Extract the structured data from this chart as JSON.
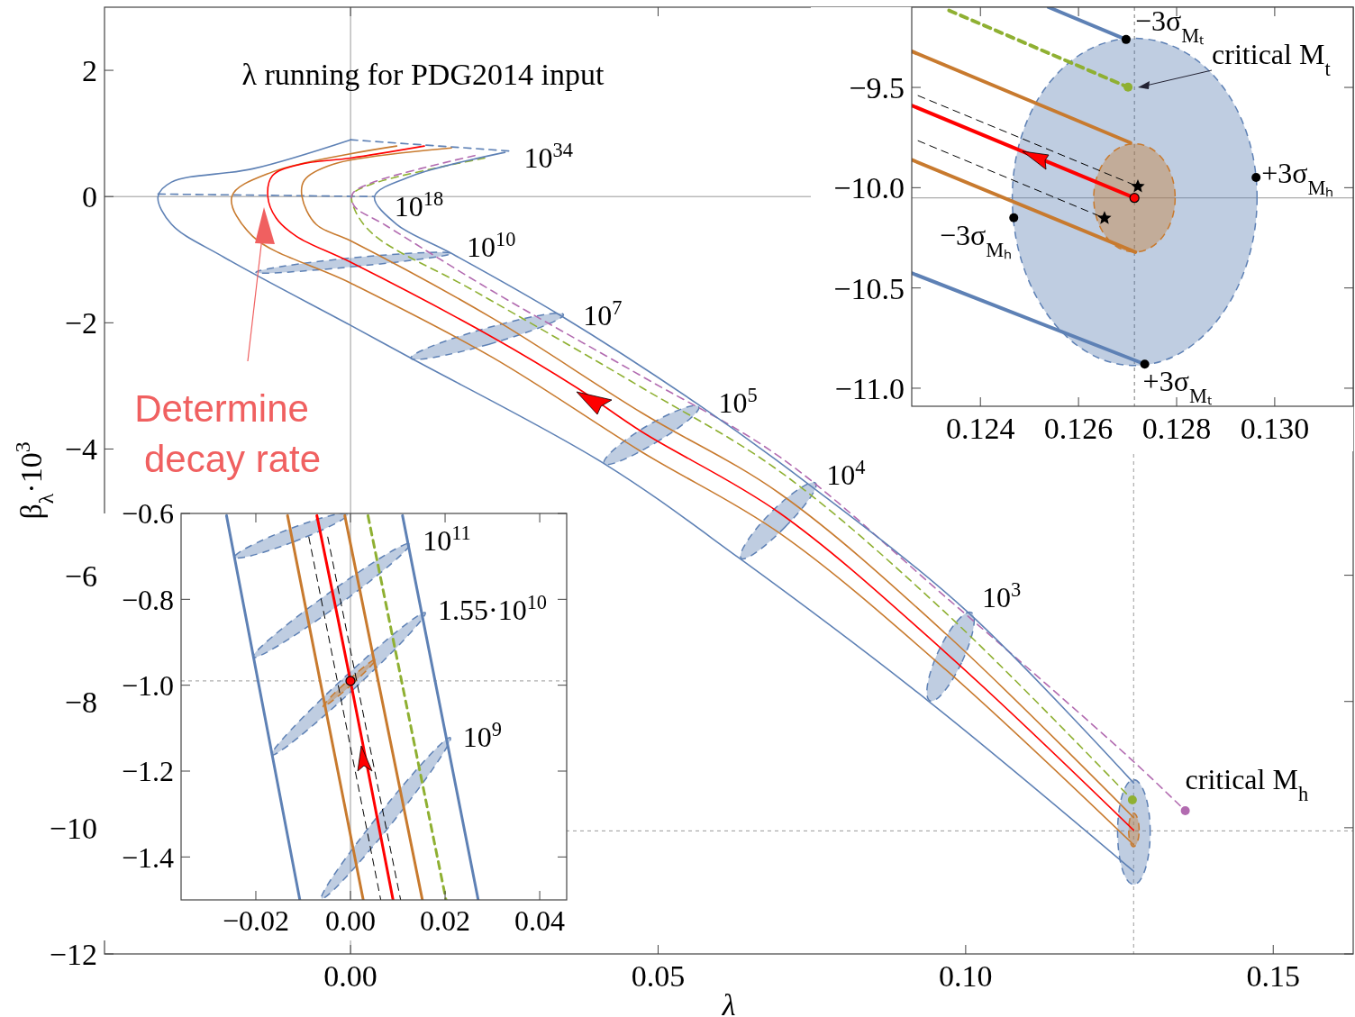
{
  "chart_data": [
    {
      "type": "line",
      "title": "λ running for PDG2014 input",
      "xlabel": "λ",
      "ylabel": "β$_{λ}$·10$^{3}$",
      "xlim": [
        -0.04,
        0.163
      ],
      "ylim": [
        -12,
        3
      ],
      "xticks": [
        {
          "value": 0,
          "label": "0.00"
        },
        {
          "value": 0.05,
          "label": "0.05"
        },
        {
          "value": 0.1,
          "label": "0.10"
        },
        {
          "value": 0.15,
          "label": "0.15"
        }
      ],
      "yticks": [
        {
          "value": -12,
          "label": "−12"
        },
        {
          "value": -10,
          "label": "−10"
        },
        {
          "value": -8,
          "label": "−8"
        },
        {
          "value": -6,
          "label": "−6"
        },
        {
          "value": -4,
          "label": "−4"
        },
        {
          "value": -2,
          "label": "−2"
        },
        {
          "value": 0,
          "label": "0"
        },
        {
          "value": 2,
          "label": "2"
        }
      ],
      "ref_lines": [
        {
          "axis": "x",
          "value": 0,
          "color": "#999999",
          "line_style": "solid"
        },
        {
          "axis": "y",
          "value": 0,
          "color": "#999999",
          "line_style": "solid"
        },
        {
          "axis": "x",
          "value": 0.1273,
          "color": "#999999",
          "line_style": "dashed"
        },
        {
          "axis": "y",
          "value": -10.05,
          "color": "#999999",
          "line_style": "dashed"
        }
      ],
      "series": [
        {
          "type": "area",
          "color": "#5e81b5",
          "line_style": "dashed",
          "x": [
            -0.0154,
            0.0005,
            0.0164,
            0.0004
          ],
          "values": [
            -1.2,
            -1.11,
            -0.9,
            -0.97
          ]
        },
        {
          "type": "area",
          "color": "#5e81b5",
          "line_style": "dashed",
          "x": [
            0.0098,
            0.0225,
            0.0346,
            0.0219
          ],
          "values": [
            -2.56,
            -2.34,
            -1.87,
            -2.09
          ]
        },
        {
          "type": "area",
          "color": "#5e81b5",
          "line_style": "dashed",
          "x": [
            0.0412,
            0.0496,
            0.0566,
            0.0481
          ],
          "values": [
            -4.23,
            -3.9,
            -3.33,
            -3.64
          ]
        },
        {
          "type": "area",
          "color": "#5e81b5",
          "line_style": "dashed",
          "x": [
            0.0635,
            0.0706,
            0.0756,
            0.0683
          ],
          "values": [
            -5.73,
            -5.24,
            -4.54,
            -5.01
          ]
        },
        {
          "type": "area",
          "color": "#5e81b5",
          "line_style": "dashed",
          "x": [
            0.0942,
            0.0994,
            0.1009,
            0.0956
          ],
          "values": [
            -7.99,
            -7.37,
            -6.59,
            -7.2
          ]
        },
        {
          "type": "area",
          "color": "#5e81b5",
          "line_style": "dashed",
          "x": [
            0.1273,
            0.13,
            0.1273,
            0.1247
          ],
          "values": [
            -10.9,
            -10.07,
            -9.24,
            -10.07
          ]
        },
        {
          "type": "area",
          "color": "#c87a2e",
          "line_style": "dashed",
          "x": [
            0.1273,
            0.1282,
            0.1273,
            0.1265
          ],
          "values": [
            -10.3,
            -10.04,
            -9.77,
            -10.04
          ]
        },
        {
          "type": "line",
          "color": "#5e81b5",
          "line_style": "dashed",
          "x": [
            0,
            0.026
          ],
          "values": [
            0.9,
            0.72
          ]
        },
        {
          "type": "line",
          "color": "#5e81b5",
          "line_style": "dashed",
          "x": [
            -0.0313,
            0.0039
          ],
          "values": [
            0.04,
            0
          ]
        },
        {
          "type": "line",
          "color": "#5e81b5",
          "line_style": "solid",
          "x": [
            0,
            -0.0159,
            -0.0291,
            -0.0313,
            -0.0291,
            -0.0206,
            0,
            0.0098,
            0.0412,
            0.0632,
            0.0939,
            0.1273
          ],
          "values": [
            0.9,
            0.44,
            0.23,
            0,
            -0.44,
            -0.96,
            -2.04,
            -2.56,
            -4.23,
            -5.73,
            -7.99,
            -10.69
          ]
        },
        {
          "type": "line",
          "color": "#c87a2e",
          "line_style": "solid",
          "x": [
            0.0075,
            -0.0127,
            -0.0193,
            -0.0159,
            0,
            0.0231,
            0.0474,
            0.0697,
            0.0968,
            0.1273
          ],
          "values": [
            0.8,
            0.39,
            0,
            -0.63,
            -1.37,
            -2.55,
            -4.05,
            -5.33,
            -7.5,
            -10.27
          ]
        },
        {
          "type": "line",
          "color": "#ff0000",
          "line_style": "solid",
          "x": [
            0.012,
            0,
            -0.0082,
            -0.0127,
            -0.01345,
            -0.0121,
            -0.0088,
            0,
            0.0231,
            0.0368,
            0.0474,
            0.0697,
            0.0968,
            0.1273
          ],
          "values": [
            0.8,
            0.61,
            0.51,
            0.33,
            0,
            -0.34,
            -0.63,
            -1.04,
            -2.23,
            -3.03,
            -3.73,
            -5.01,
            -7.23,
            -10.04
          ]
        },
        {
          "type": "line",
          "color": "#c87a2e",
          "line_style": "solid",
          "x": [
            0.0164,
            -0.0029,
            -0.0075,
            -0.0079,
            -0.0056,
            0,
            0.0231,
            0.0474,
            0.0697,
            0.0968,
            0.1273
          ],
          "values": [
            0.77,
            0.51,
            0.26,
            0,
            -0.44,
            -0.7,
            -1.93,
            -3.43,
            -4.7,
            -6.93,
            -9.84
          ]
        },
        {
          "type": "line",
          "color": "#8fb032",
          "line_style": "dashed",
          "x": [
            0.0218,
            0.0035,
            0.0003,
            0.0006,
            0.0037,
            0.0202,
            0.0474,
            0.0697,
            0.0968,
            0.1271
          ],
          "values": [
            0.61,
            0.2,
            0.03,
            -0.19,
            -0.6,
            -1.5,
            -3.03,
            -4.35,
            -6.6,
            -9.56
          ]
        },
        {
          "type": "line",
          "color": "#b26bb0",
          "line_style": "dashed",
          "x": [
            0.0202,
            0.0035,
            0.0003,
            0.0006,
            0.0056,
            0.0231,
            0.0474,
            0.0697,
            0.0968,
            0.1266,
            0.1357
          ],
          "values": [
            0.65,
            0.22,
            0.04,
            -0.15,
            -0.45,
            -1.5,
            -2.85,
            -4.12,
            -6.35,
            -8.89,
            -9.73
          ]
        },
        {
          "type": "line",
          "color": "#5e81b5",
          "line_style": "solid",
          "x": [
            0.0251,
            0.0101,
            0.0039,
            0.0075,
            0.0164,
            0.0339,
            0.0566,
            0.0749,
            0.1004,
            0.1273
          ],
          "values": [
            0.7,
            0.33,
            0,
            -0.44,
            -0.9,
            -1.87,
            -3.3,
            -4.59,
            -6.59,
            -9.29
          ]
        },
        {
          "type": "scatter",
          "color": "#8fb032",
          "marker": "circle",
          "x": [
            0.1271
          ],
          "values": [
            -9.56
          ]
        },
        {
          "type": "scatter",
          "color": "#b26bb0",
          "marker": "circle",
          "x": [
            0.1357
          ],
          "values": [
            -9.73
          ]
        }
      ],
      "annotations": [
        "Determine decay rate",
        {
          "text": "10$^{34}$",
          "x": 0.026,
          "y": 0.72
        },
        {
          "text": "10$^{18}$",
          "x": 0.0039,
          "y": 0
        },
        {
          "text": "10$^{10}$",
          "x": 0.0164,
          "y": -0.9
        },
        {
          "text": "10$^{7}$",
          "x": 0.0346,
          "y": -1.87
        },
        {
          "text": "10$^{5}$",
          "x": 0.0566,
          "y": -3.33
        },
        {
          "text": "10$^{4}$",
          "x": 0.0756,
          "y": -4.54
        },
        {
          "text": "10$^{3}$",
          "x": 0.1009,
          "y": -6.59
        },
        {
          "text": "critical M$_{h}$",
          "x": 0.1357,
          "y": -9.73
        }
      ]
    },
    {
      "type": "line",
      "xlim": [
        -0.0358,
        0.0457
      ],
      "ylim": [
        -1.5,
        -0.6
      ],
      "xticks": [
        {
          "value": -0.02,
          "label": "−0.02"
        },
        {
          "value": 0,
          "label": "0.00"
        },
        {
          "value": 0.02,
          "label": "0.02"
        },
        {
          "value": 0.04,
          "label": "0.04"
        }
      ],
      "yticks": [
        {
          "value": -1.4,
          "label": "−1.4"
        },
        {
          "value": -1.2,
          "label": "−1.2"
        },
        {
          "value": -1.0,
          "label": "−1.0"
        },
        {
          "value": -0.8,
          "label": "−0.8"
        },
        {
          "value": -0.6,
          "label": "−0.6"
        }
      ],
      "ref_lines": [
        {
          "axis": "x",
          "value": 0,
          "color": "#999999",
          "line_style": "solid"
        },
        {
          "axis": "y",
          "value": -0.99,
          "color": "#999999",
          "line_style": "dashed"
        }
      ],
      "series": [
        {
          "type": "area",
          "color": "#5e81b5",
          "line_style": "dashed",
          "x": [
            -0.0245,
            -0.012,
            -0.0005,
            -0.0131
          ],
          "values": [
            -0.702,
            -0.666,
            -0.601,
            -0.637
          ]
        },
        {
          "type": "area",
          "color": "#5e81b5",
          "line_style": "dashed",
          "x": [
            -0.0206,
            -0.003,
            0.0126,
            -0.0049
          ],
          "values": [
            -0.935,
            -0.817,
            -0.67,
            -0.788
          ]
        },
        {
          "type": "area",
          "color": "#5e81b5",
          "line_style": "dashed",
          "x": [
            -0.0166,
            0.0007,
            0.0158,
            -0.0015
          ],
          "values": [
            -1.162,
            -1.009,
            -0.831,
            -0.984
          ]
        },
        {
          "type": "area",
          "color": "#5e81b5",
          "line_style": "dashed",
          "x": [
            -0.0061,
            0.0088,
            0.0211,
            0.0062
          ],
          "values": [
            -1.497,
            -1.321,
            -1.122,
            -1.299
          ]
        },
        {
          "type": "area",
          "color": "#c87a2e",
          "line_style": "dashed",
          "x": [
            -0.0058,
            0.0002,
            0.0054,
            -0.0006
          ],
          "values": [
            -1.05,
            -0.999,
            -0.939,
            -0.99
          ]
        },
        {
          "type": "line",
          "color": "#000000",
          "line_style": "dashed",
          "x": [
            -0.0088,
            0.0064
          ],
          "values": [
            -0.655,
            -1.5
          ]
        },
        {
          "type": "line",
          "color": "#000000",
          "line_style": "dashed",
          "x": [
            -0.0048,
            0.0106
          ],
          "values": [
            -0.655,
            -1.5
          ]
        },
        {
          "type": "line",
          "color": "#5e81b5",
          "line_style": "solid",
          "x": [
            -0.0262,
            -0.0107
          ],
          "values": [
            -0.605,
            -1.5
          ]
        },
        {
          "type": "line",
          "color": "#c87a2e",
          "line_style": "solid",
          "x": [
            -0.0133,
            0.0027
          ],
          "values": [
            -0.605,
            -1.5
          ]
        },
        {
          "type": "line",
          "color": "#ff0000",
          "line_style": "solid",
          "x": [
            -0.0071,
            0,
            0.009
          ],
          "values": [
            -0.605,
            -0.99,
            -1.5
          ]
        },
        {
          "type": "line",
          "color": "#c87a2e",
          "line_style": "solid",
          "x": [
            -0.0012,
            0.0152
          ],
          "values": [
            -0.605,
            -1.5
          ]
        },
        {
          "type": "line",
          "color": "#8fb032",
          "line_style": "dashed",
          "x": [
            0.0037,
            0.0202
          ],
          "values": [
            -0.605,
            -1.5
          ]
        },
        {
          "type": "line",
          "color": "#5e81b5",
          "line_style": "solid",
          "x": [
            0.011,
            0.027
          ],
          "values": [
            -0.605,
            -1.5
          ]
        },
        {
          "type": "scatter",
          "color": "#ff0000",
          "marker": "circle",
          "x": [
            0
          ],
          "values": [
            -0.99
          ]
        }
      ],
      "annotations": [
        {
          "text": "10$^{11}$",
          "x": 0.0126,
          "y": -0.67
        },
        {
          "text": "1.55·10$^{10}$",
          "x": 0.0158,
          "y": -0.831
        },
        {
          "text": "10$^{9}$",
          "x": 0.0211,
          "y": -1.122
        }
      ]
    },
    {
      "type": "line",
      "xlim": [
        0.1226,
        0.1316
      ],
      "ylim": [
        -11.09,
        -9.1
      ],
      "xticks": [
        {
          "value": 0.124,
          "label": "0.124"
        },
        {
          "value": 0.126,
          "label": "0.126"
        },
        {
          "value": 0.128,
          "label": "0.128"
        },
        {
          "value": 0.13,
          "label": "0.130"
        }
      ],
      "yticks": [
        {
          "value": -11,
          "label": "−11.0"
        },
        {
          "value": -10.5,
          "label": "−10.5"
        },
        {
          "value": -10,
          "label": "−10.0"
        },
        {
          "value": -9.5,
          "label": "−9.5"
        }
      ],
      "ref_lines": [
        {
          "axis": "x",
          "value": 0.12714,
          "color": "#777777",
          "line_style": "dashed"
        },
        {
          "axis": "y",
          "value": -10.051,
          "color": "#999999",
          "line_style": "solid"
        }
      ],
      "series": [
        {
          "type": "area",
          "color": "#5e81b5",
          "line_style": "dashed",
          "x": [
            0.12714,
            0.12964,
            0.12714,
            0.12465
          ],
          "values": [
            -9.255,
            -10.051,
            -10.887,
            -10.051
          ]
        },
        {
          "type": "area",
          "color": "#c87a2e",
          "line_style": "dashed",
          "x": [
            0.12714,
            0.12797,
            0.12714,
            0.12631
          ],
          "values": [
            -9.781,
            -10.051,
            -10.321,
            -10.051
          ]
        },
        {
          "type": "line",
          "color": "#000000",
          "line_style": "dashed",
          "x": [
            0.12273,
            0.12721
          ],
          "values": [
            -9.541,
            -9.994
          ]
        },
        {
          "type": "line",
          "color": "#000000",
          "line_style": "dashed",
          "x": [
            0.12273,
            0.12653
          ],
          "values": [
            -9.766,
            -10.152
          ]
        },
        {
          "type": "line",
          "color": "#5e81b5",
          "line_style": "solid",
          "x": [
            0.12539,
            0.12697
          ],
          "values": [
            -9.1,
            -9.261
          ]
        },
        {
          "type": "line",
          "color": "#8fb032",
          "line_style": "dashed",
          "x": [
            0.12336,
            0.12701
          ],
          "values": [
            -9.116,
            -9.499
          ]
        },
        {
          "type": "line",
          "color": "#c87a2e",
          "line_style": "solid",
          "x": [
            0.12261,
            0.12706
          ],
          "values": [
            -9.321,
            -9.776
          ]
        },
        {
          "type": "line",
          "color": "#ff0000",
          "line_style": "solid",
          "x": [
            0.12261,
            0.12714
          ],
          "values": [
            -9.591,
            -10.051
          ]
        },
        {
          "type": "line",
          "color": "#c87a2e",
          "line_style": "solid",
          "x": [
            0.12261,
            0.12716
          ],
          "values": [
            -9.862,
            -10.321
          ]
        },
        {
          "type": "line",
          "color": "#5e81b5",
          "line_style": "solid",
          "x": [
            0.12261,
            0.12735
          ],
          "values": [
            -10.427,
            -10.88
          ]
        },
        {
          "type": "scatter",
          "color": "#000000",
          "marker": "circle",
          "x": [
            0.12697,
            0.12962,
            0.12468,
            0.12735
          ],
          "values": [
            -9.261,
            -9.949,
            -10.15,
            -10.88
          ]
        },
        {
          "type": "scatter",
          "color": "#8fb032",
          "marker": "circle",
          "x": [
            0.12701
          ],
          "values": [
            -9.499
          ]
        },
        {
          "type": "scatter",
          "color": "#000000",
          "marker": "star",
          "x": [
            0.12721,
            0.12653
          ],
          "values": [
            -9.994,
            -10.152
          ]
        },
        {
          "type": "scatter",
          "color": "#ff0000",
          "marker": "circle",
          "x": [
            0.12714
          ],
          "values": [
            -10.051
          ]
        }
      ],
      "annotations": [
        {
          "text": "−3σ$_{Mₜ}$",
          "x": 0.12697,
          "y": -9.261
        },
        {
          "text": "critical M$_{t}$",
          "x": 0.12701,
          "y": -9.499
        },
        {
          "text": "+3σ$_{Mₕ}$",
          "x": 0.12962,
          "y": -9.949
        },
        {
          "text": "−3σ$_{Mₕ}$",
          "x": 0.12468,
          "y": -10.15
        },
        {
          "text": "+3σ$_{Mₜ}$",
          "x": 0.12735,
          "y": -10.88
        }
      ]
    }
  ]
}
